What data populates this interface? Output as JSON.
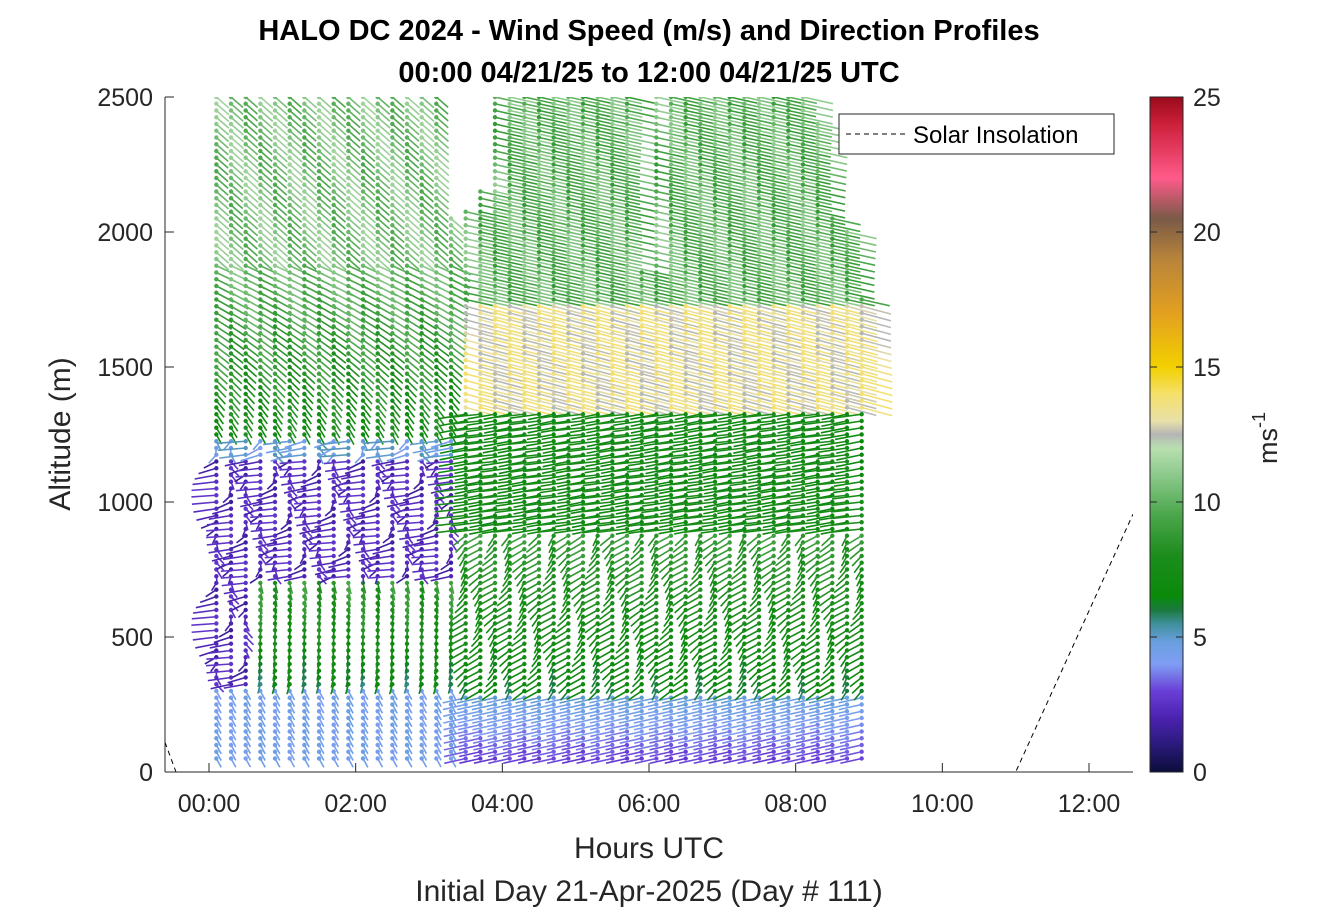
{
  "chart_data": {
    "type": "vector-field",
    "title_line1": "HALO DC 2024 - Wind Speed (m/s) and Direction Profiles",
    "title_line2": "00:00 04/21/25 to 12:00 04/21/25  UTC",
    "xlabel": "Hours UTC",
    "xlabel2": "Initial Day 21-Apr-2025 (Day # 111)",
    "ylabel": "Altitude (m)",
    "x_unit": "hours UTC",
    "y_unit": "m",
    "xlim": [
      -0.6,
      12.6
    ],
    "ylim": [
      0,
      2500
    ],
    "xticks": [
      0,
      2,
      4,
      6,
      8,
      10,
      12
    ],
    "xtick_labels": [
      "00:00",
      "02:00",
      "04:00",
      "06:00",
      "08:00",
      "10:00",
      "12:00"
    ],
    "yticks": [
      0,
      500,
      1000,
      1500,
      2000,
      2500
    ],
    "ytick_labels": [
      "0",
      "500",
      "1000",
      "1500",
      "2000",
      "2500"
    ],
    "legend": {
      "label": "Solar Insolation",
      "placement": "top-right"
    },
    "colorbar": {
      "label": "ms",
      "label_exp": "-1",
      "range": [
        0,
        25
      ],
      "ticks": [
        0,
        5,
        10,
        15,
        20,
        25
      ],
      "tick_labels": [
        "0",
        "5",
        "10",
        "15",
        "20",
        "25"
      ],
      "colors": [
        [
          0,
          "#0b0d3a"
        ],
        [
          1,
          "#2a1a7a"
        ],
        [
          2,
          "#4b22b0"
        ],
        [
          3,
          "#6a3fd8"
        ],
        [
          4,
          "#7f9ef3"
        ],
        [
          4.8,
          "#6a9fe0"
        ],
        [
          5.5,
          "#3f8f9a"
        ],
        [
          6,
          "#1a7a3f"
        ],
        [
          6.5,
          "#0a8a0a"
        ],
        [
          8,
          "#1c8c1c"
        ],
        [
          9.5,
          "#4aa64a"
        ],
        [
          11,
          "#8cc98c"
        ],
        [
          12,
          "#b9dfb0"
        ],
        [
          12.5,
          "#b5b5b5"
        ],
        [
          13,
          "#e8e0a8"
        ],
        [
          14,
          "#f5e06a"
        ],
        [
          15,
          "#f2d000"
        ],
        [
          17,
          "#e3a020"
        ],
        [
          19,
          "#b8843a"
        ],
        [
          20.5,
          "#7a5a48"
        ],
        [
          22,
          "#ff5a8a"
        ],
        [
          24,
          "#cc1f3a"
        ],
        [
          25,
          "#9a0a1a"
        ]
      ]
    },
    "solar_insolation": {
      "x": [
        -0.6,
        -0.45,
        11.0,
        12.6
      ],
      "y": [
        110,
        0,
        0,
        955
      ]
    },
    "wind": {
      "times": [
        0.1,
        0.3,
        0.5,
        0.7,
        0.9,
        1.1,
        1.3,
        1.5,
        1.7,
        1.9,
        2.1,
        2.3,
        2.5,
        2.7,
        2.9,
        3.1,
        3.3,
        3.5,
        3.7,
        3.9,
        4.1,
        4.3,
        4.5,
        4.7,
        4.9,
        5.1,
        5.3,
        5.5,
        5.7,
        5.9,
        6.1,
        6.3,
        6.5,
        6.7,
        6.9,
        7.1,
        7.3,
        7.5,
        7.7,
        7.9,
        8.1,
        8.3,
        8.5,
        8.7,
        8.9
      ],
      "alt_start": 50,
      "alt_step": 25,
      "alt_end": 2500,
      "profiles": [
        {
          "max_alt": 2500,
          "early": true
        },
        {
          "max_alt": 2500,
          "early": true
        },
        {
          "max_alt": 2500,
          "early": true
        },
        {
          "max_alt": 2500,
          "early": true
        },
        {
          "max_alt": 2500,
          "early": true
        },
        {
          "max_alt": 2500,
          "early": true
        },
        {
          "max_alt": 2500,
          "early": true
        },
        {
          "max_alt": 2500,
          "early": true
        },
        {
          "max_alt": 2500,
          "early": true
        },
        {
          "max_alt": 2500,
          "early": true
        },
        {
          "max_alt": 2500,
          "early": true
        },
        {
          "max_alt": 2500,
          "early": true
        },
        {
          "max_alt": 2500,
          "early": true
        },
        {
          "max_alt": 2500,
          "early": true
        },
        {
          "max_alt": 2500,
          "early": true
        },
        {
          "max_alt": 2500,
          "early": true
        },
        {
          "max_alt": 2050,
          "early": true
        },
        {
          "max_alt": 2075,
          "early": false
        },
        {
          "max_alt": 2150,
          "early": false
        },
        {
          "max_alt": 2500,
          "early": false
        },
        {
          "max_alt": 2500,
          "early": false
        },
        {
          "max_alt": 2500,
          "early": false
        },
        {
          "max_alt": 2500,
          "early": false
        },
        {
          "max_alt": 2500,
          "early": false
        },
        {
          "max_alt": 2500,
          "early": false
        },
        {
          "max_alt": 2500,
          "early": false
        },
        {
          "max_alt": 2500,
          "early": false
        },
        {
          "max_alt": 2500,
          "early": false
        },
        {
          "max_alt": 2500,
          "early": false
        },
        {
          "max_alt": 1850,
          "early": false
        },
        {
          "max_alt": 2500,
          "early": false
        },
        {
          "max_alt": 2500,
          "early": false
        },
        {
          "max_alt": 2500,
          "early": false
        },
        {
          "max_alt": 2500,
          "early": false
        },
        {
          "max_alt": 2500,
          "early": false
        },
        {
          "max_alt": 2500,
          "early": false
        },
        {
          "max_alt": 2500,
          "early": false
        },
        {
          "max_alt": 2500,
          "early": false
        },
        {
          "max_alt": 2500,
          "early": false
        },
        {
          "max_alt": 2500,
          "early": false
        },
        {
          "max_alt": 2500,
          "early": false
        },
        {
          "max_alt": 2400,
          "early": false
        },
        {
          "max_alt": 2050,
          "early": false
        },
        {
          "max_alt": 2000,
          "early": false
        },
        {
          "max_alt": 1750,
          "early": false
        }
      ]
    }
  }
}
